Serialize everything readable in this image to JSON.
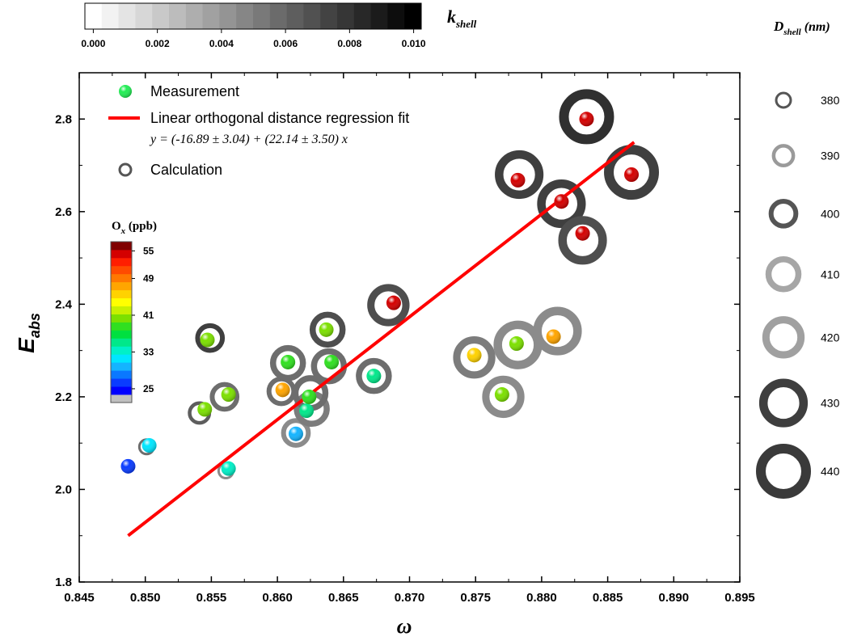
{
  "chart_data": {
    "type": "scatter",
    "xlabel": "ω",
    "ylabel_main": "E",
    "ylabel_sub": "abs",
    "xlim": [
      0.845,
      0.895
    ],
    "ylim": [
      1.8,
      2.9
    ],
    "x_ticks": [
      "0.845",
      "0.850",
      "0.855",
      "0.860",
      "0.865",
      "0.870",
      "0.875",
      "0.880",
      "0.885",
      "0.890",
      "0.895"
    ],
    "y_ticks": [
      "1.8",
      "2.0",
      "2.2",
      "2.4",
      "2.6",
      "2.8"
    ],
    "legend": {
      "measurement": "Measurement",
      "fit": "Linear orthogonal distance regression fit",
      "equation": "y = (-16.89 ± 3.04) + (22.14 ± 3.50) x",
      "calculation": "Calculation"
    },
    "fit_line": {
      "x": [
        0.8487,
        0.887
      ],
      "y": [
        1.9,
        2.75
      ],
      "color": "#ff0000",
      "intercept": -16.89,
      "intercept_err": 3.04,
      "slope": 22.14,
      "slope_err": 3.5
    },
    "measurements": [
      {
        "x": 0.8487,
        "y": 2.05,
        "ox": 27
      },
      {
        "x": 0.8503,
        "y": 2.095,
        "ox": 31
      },
      {
        "x": 0.8545,
        "y": 2.173,
        "ox": 40
      },
      {
        "x": 0.8547,
        "y": 2.323,
        "ox": 40
      },
      {
        "x": 0.8563,
        "y": 2.045,
        "ox": 33
      },
      {
        "x": 0.8563,
        "y": 2.205,
        "ox": 40
      },
      {
        "x": 0.8604,
        "y": 2.215,
        "ox": 48
      },
      {
        "x": 0.8608,
        "y": 2.275,
        "ox": 39
      },
      {
        "x": 0.8614,
        "y": 2.12,
        "ox": 30
      },
      {
        "x": 0.8622,
        "y": 2.17,
        "ox": 35
      },
      {
        "x": 0.8624,
        "y": 2.2,
        "ox": 39
      },
      {
        "x": 0.8637,
        "y": 2.345,
        "ox": 40
      },
      {
        "x": 0.8641,
        "y": 2.275,
        "ox": 38
      },
      {
        "x": 0.8673,
        "y": 2.245,
        "ox": 35
      },
      {
        "x": 0.8688,
        "y": 2.403,
        "ox": 54
      },
      {
        "x": 0.8749,
        "y": 2.29,
        "ox": 45
      },
      {
        "x": 0.877,
        "y": 2.205,
        "ox": 40
      },
      {
        "x": 0.8781,
        "y": 2.315,
        "ox": 41
      },
      {
        "x": 0.8782,
        "y": 2.668,
        "ox": 54
      },
      {
        "x": 0.8809,
        "y": 2.33,
        "ox": 48
      },
      {
        "x": 0.8815,
        "y": 2.622,
        "ox": 54
      },
      {
        "x": 0.8831,
        "y": 2.553,
        "ox": 54
      },
      {
        "x": 0.8834,
        "y": 2.8,
        "ox": 54
      },
      {
        "x": 0.8868,
        "y": 2.68,
        "ox": 54
      }
    ],
    "calculations": [
      {
        "x": 0.8501,
        "y": 2.092,
        "d": 380,
        "k": 0.006
      },
      {
        "x": 0.8541,
        "y": 2.165,
        "d": 390,
        "k": 0.007
      },
      {
        "x": 0.8549,
        "y": 2.327,
        "d": 400,
        "k": 0.009
      },
      {
        "x": 0.8561,
        "y": 2.04,
        "d": 380,
        "k": 0.004
      },
      {
        "x": 0.856,
        "y": 2.2,
        "d": 400,
        "k": 0.006
      },
      {
        "x": 0.8603,
        "y": 2.212,
        "d": 400,
        "k": 0.006
      },
      {
        "x": 0.8608,
        "y": 2.273,
        "d": 410,
        "k": 0.006
      },
      {
        "x": 0.8614,
        "y": 2.122,
        "d": 400,
        "k": 0.004
      },
      {
        "x": 0.8626,
        "y": 2.174,
        "d": 410,
        "k": 0.005
      },
      {
        "x": 0.8625,
        "y": 2.208,
        "d": 410,
        "k": 0.006
      },
      {
        "x": 0.8638,
        "y": 2.345,
        "d": 410,
        "k": 0.008
      },
      {
        "x": 0.8639,
        "y": 2.266,
        "d": 410,
        "k": 0.006
      },
      {
        "x": 0.8673,
        "y": 2.245,
        "d": 410,
        "k": 0.006
      },
      {
        "x": 0.8684,
        "y": 2.398,
        "d": 420,
        "k": 0.008
      },
      {
        "x": 0.8749,
        "y": 2.285,
        "d": 420,
        "k": 0.005
      },
      {
        "x": 0.8771,
        "y": 2.2,
        "d": 420,
        "k": 0.004
      },
      {
        "x": 0.8782,
        "y": 2.312,
        "d": 430,
        "k": 0.004
      },
      {
        "x": 0.8783,
        "y": 2.68,
        "d": 430,
        "k": 0.009
      },
      {
        "x": 0.8812,
        "y": 2.342,
        "d": 430,
        "k": 0.004
      },
      {
        "x": 0.8815,
        "y": 2.617,
        "d": 430,
        "k": 0.009
      },
      {
        "x": 0.8831,
        "y": 2.538,
        "d": 430,
        "k": 0.008
      },
      {
        "x": 0.8834,
        "y": 2.805,
        "d": 440,
        "k": 0.01
      },
      {
        "x": 0.8868,
        "y": 2.685,
        "d": 440,
        "k": 0.009
      }
    ],
    "k_colorbar": {
      "title_main": "k",
      "title_sub": "shell",
      "ticks": [
        "0.000",
        "0.002",
        "0.004",
        "0.006",
        "0.008",
        "0.010"
      ],
      "range": [
        0.0,
        0.0105
      ],
      "steps": 20
    },
    "ox_colorbar": {
      "title_main": "O",
      "title_sub": "x",
      "title_unit": "(ppb)",
      "ticks": [
        "25",
        "33",
        "41",
        "49",
        "55"
      ],
      "colors": [
        "#c0c0c0",
        "#0000ff",
        "#0a3cff",
        "#0a78ff",
        "#14b4ff",
        "#00e6ff",
        "#00f0c8",
        "#00e88a",
        "#00e040",
        "#30e020",
        "#7ce000",
        "#c8f000",
        "#ffff00",
        "#ffd200",
        "#ffa500",
        "#ff7800",
        "#ff4b00",
        "#ff1e00",
        "#d40000",
        "#800000"
      ]
    },
    "size_legend": {
      "title_main": "D",
      "title_sub": "shell",
      "title_unit": "(nm)",
      "sizes": [
        "380",
        "390",
        "400",
        "410",
        "420",
        "430",
        "440"
      ],
      "grays": [
        "#555555",
        "#9a9a9a",
        "#555555",
        "#a6a6a6",
        "#a0a0a0",
        "#3e3e3e",
        "#3a3a3a"
      ]
    }
  }
}
